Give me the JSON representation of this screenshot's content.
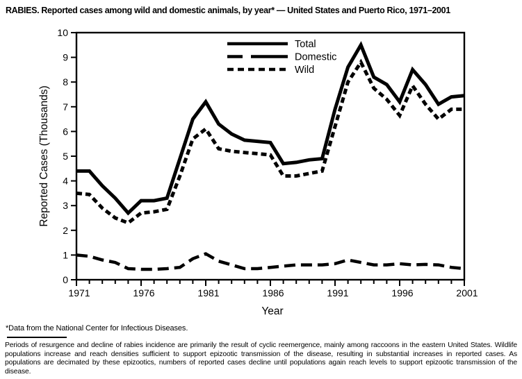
{
  "title": "RABIES. Reported cases among wild and domestic animals, by year* — United States and Puerto Rico, 1971–2001",
  "footnote": "*Data from the National Center for Infectious Diseases.",
  "note_paragraph": "Periods of resurgence and decline of rabies incidence are primarily the result of cyclic reemergence, mainly among raccoons in the eastern United States. Wildlife populations increase and reach densities sufficient to support epizootic transmission of the disease, resulting in substantial increases in reported cases. As populations are decimated by these epizootics, numbers of reported cases decline until populations again reach levels to support epizootic transmission of the disease.",
  "chart_data": {
    "type": "line",
    "title": "",
    "xlabel": "Year",
    "ylabel": "Reported Cases (Thousands)",
    "xlim": [
      1971,
      2001
    ],
    "ylim": [
      0,
      10
    ],
    "grid": false,
    "legend_position": "top-center-inside",
    "line_color": "#000000",
    "background_color": "#ffffff",
    "x": [
      1971,
      1972,
      1973,
      1974,
      1975,
      1976,
      1977,
      1978,
      1979,
      1980,
      1981,
      1982,
      1983,
      1984,
      1985,
      1986,
      1987,
      1988,
      1989,
      1990,
      1991,
      1992,
      1993,
      1994,
      1995,
      1996,
      1997,
      1998,
      1999,
      2000,
      2001
    ],
    "x_tick_labels": [
      1971,
      1976,
      1981,
      1986,
      1991,
      1996,
      2001
    ],
    "y_ticks": [
      0,
      1,
      2,
      3,
      4,
      5,
      6,
      7,
      8,
      9,
      10
    ],
    "series": [
      {
        "name": "Total",
        "style": "solid",
        "values": [
          4.4,
          4.4,
          3.8,
          3.3,
          2.7,
          3.2,
          3.2,
          3.3,
          4.9,
          6.5,
          7.2,
          6.3,
          5.9,
          5.65,
          5.6,
          5.55,
          4.7,
          4.75,
          4.85,
          4.9,
          6.9,
          8.6,
          9.5,
          8.2,
          7.9,
          7.2,
          8.5,
          7.9,
          7.1,
          7.4,
          7.45
        ]
      },
      {
        "name": "Domestic",
        "style": "long-dash",
        "values": [
          1.0,
          0.95,
          0.8,
          0.7,
          0.45,
          0.42,
          0.42,
          0.45,
          0.5,
          0.85,
          1.05,
          0.75,
          0.6,
          0.45,
          0.45,
          0.5,
          0.55,
          0.6,
          0.6,
          0.6,
          0.65,
          0.8,
          0.7,
          0.6,
          0.6,
          0.65,
          0.6,
          0.62,
          0.6,
          0.5,
          0.45
        ]
      },
      {
        "name": "Wild",
        "style": "short-dash",
        "values": [
          3.5,
          3.45,
          2.9,
          2.5,
          2.3,
          2.7,
          2.75,
          2.85,
          4.2,
          5.7,
          6.1,
          5.3,
          5.2,
          5.15,
          5.1,
          5.05,
          4.2,
          4.2,
          4.3,
          4.4,
          6.2,
          8.0,
          8.8,
          7.75,
          7.3,
          6.65,
          7.85,
          7.1,
          6.5,
          6.9,
          6.9
        ]
      }
    ]
  }
}
